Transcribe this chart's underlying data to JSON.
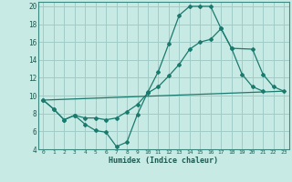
{
  "xlabel": "Humidex (Indice chaleur)",
  "bg_color": "#c8eae4",
  "grid_color": "#a0ccc8",
  "line_color": "#1a7a6e",
  "spine_color": "#3a8880",
  "xlim": [
    -0.5,
    23.5
  ],
  "ylim": [
    4,
    20.5
  ],
  "xticks": [
    0,
    1,
    2,
    3,
    4,
    5,
    6,
    7,
    8,
    9,
    10,
    11,
    12,
    13,
    14,
    15,
    16,
    17,
    18,
    19,
    20,
    21,
    22,
    23
  ],
  "yticks": [
    4,
    6,
    8,
    10,
    12,
    14,
    16,
    18,
    20
  ],
  "series": [
    {
      "x": [
        0,
        1,
        2,
        3,
        4,
        5,
        6,
        7,
        8,
        9,
        10,
        11,
        12,
        13,
        14,
        15,
        16,
        17,
        18,
        19,
        20,
        21,
        22,
        23
      ],
      "y": [
        9.5,
        8.5,
        7.3,
        7.8,
        6.8,
        6.1,
        5.9,
        4.3,
        4.8,
        7.9,
        10.4,
        12.7,
        15.8,
        19.0,
        20.0,
        20.0,
        20.0,
        17.5,
        15.3,
        12.4,
        11.0,
        10.5,
        null,
        null
      ],
      "has_markers": true
    },
    {
      "x": [
        0,
        1,
        2,
        3,
        4,
        5,
        6,
        7,
        8,
        9,
        10,
        11,
        12,
        13,
        14,
        15,
        16,
        17,
        18,
        20,
        21,
        22,
        23
      ],
      "y": [
        9.5,
        8.5,
        7.3,
        7.8,
        7.5,
        7.5,
        7.3,
        7.5,
        8.2,
        9.0,
        10.3,
        11.0,
        12.2,
        13.5,
        15.2,
        16.0,
        16.3,
        17.5,
        15.3,
        15.2,
        12.4,
        11.0,
        10.5
      ],
      "has_markers": true
    },
    {
      "x": [
        0,
        23
      ],
      "y": [
        9.5,
        10.5
      ],
      "has_markers": false
    }
  ]
}
